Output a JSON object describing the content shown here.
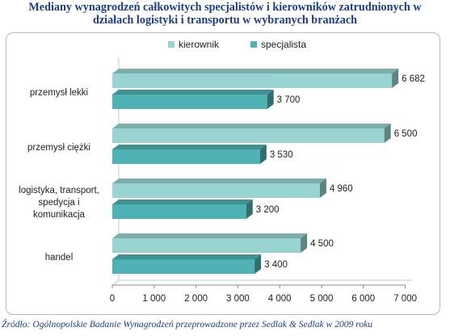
{
  "title_line1": "Mediany wynagrodzeń całkowitych specjalistów  i kierowników zatrudnionych w",
  "title_line2": "działach logistyki i transportu w wybranych branżach",
  "source": "Źródło: Ogólnopolskie Badanie Wynagrodzeń przeprowadzone przez Sedlak & Sedlak w 2009 roku",
  "colors": {
    "kierownik": "#9ad4d2",
    "specjalista": "#4fb1b3",
    "axis": "#8a8a8a"
  },
  "chart_data": {
    "type": "bar",
    "orientation": "horizontal",
    "style": "3d",
    "title": "Mediany wynagrodzeń całkowitych specjalistów  i kierowników zatrudnionych w działach logistyki i transportu w wybranych branżach",
    "categories": [
      [
        "przemysł lekki"
      ],
      [
        "przemysł ciężki"
      ],
      [
        "logistyka, transport,",
        "spedycja i",
        "komunikacja"
      ],
      [
        "handel"
      ]
    ],
    "series": [
      {
        "name": "kierownik",
        "values": [
          6682,
          6500,
          4960,
          4500
        ],
        "labels": [
          "6 682",
          "6 500",
          "4 960",
          "4 500"
        ]
      },
      {
        "name": "specjalista",
        "values": [
          3700,
          3530,
          3200,
          3400
        ],
        "labels": [
          "3 700",
          "3 530",
          "3 200",
          "3 400"
        ]
      }
    ],
    "xlim": [
      0,
      7000
    ],
    "xticks": [
      0,
      1000,
      2000,
      3000,
      4000,
      5000,
      6000,
      7000
    ],
    "xtick_labels": [
      "0",
      "1 000",
      "2 000",
      "3 000",
      "4 000",
      "5 000",
      "6 000",
      "7 000"
    ],
    "legend": "top-center",
    "grid": false
  }
}
